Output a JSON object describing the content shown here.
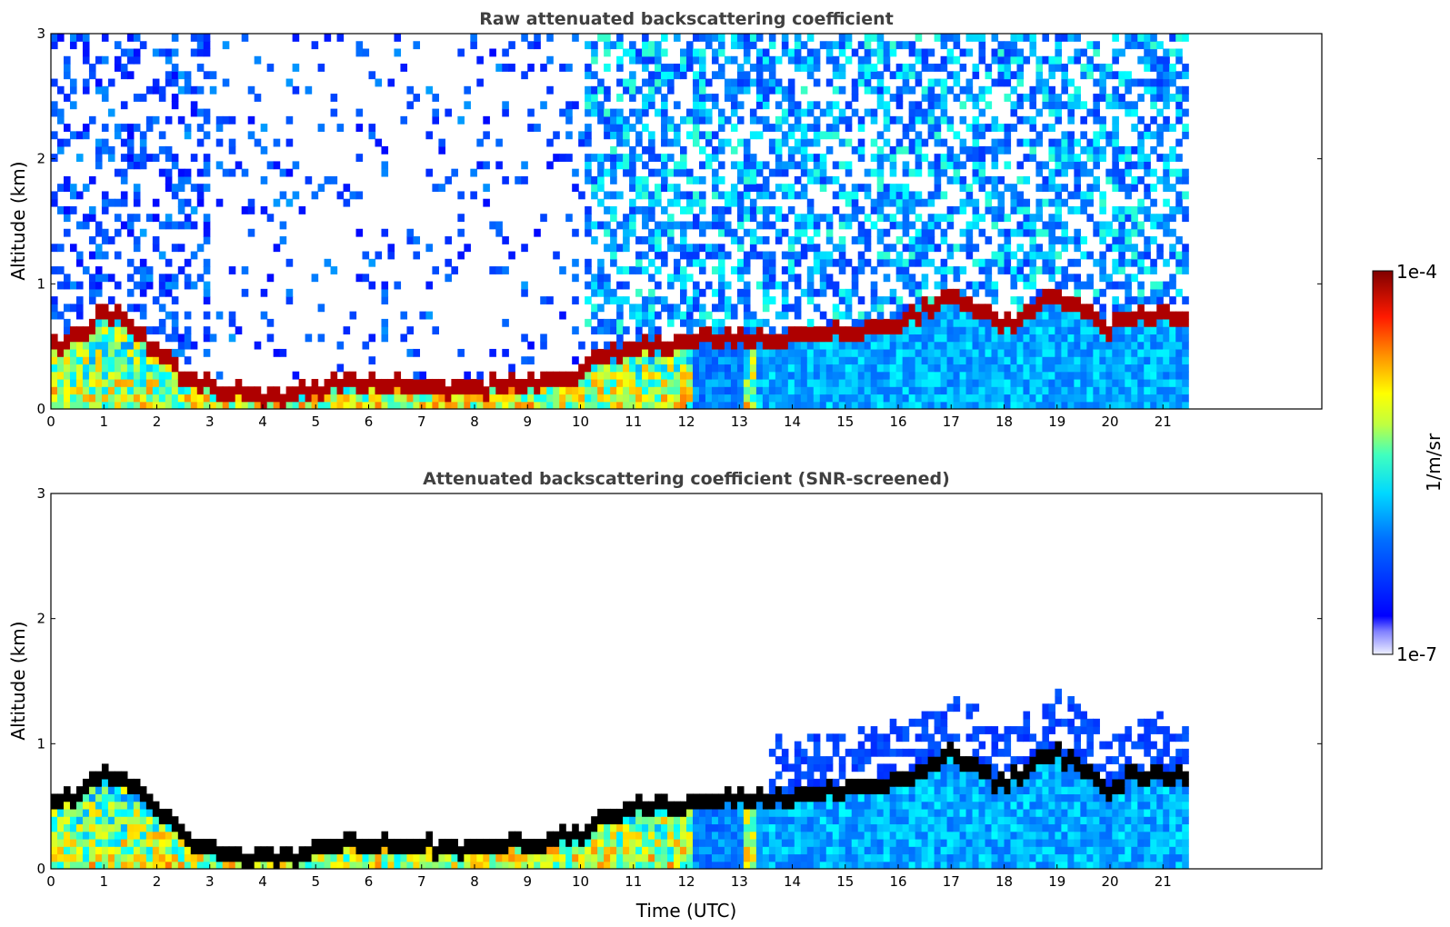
{
  "chart_data": [
    {
      "type": "heatmap",
      "title": "Raw attenuated backscattering coefficient",
      "xlabel": "",
      "ylabel": "Altitude (km)",
      "xlim": [
        0,
        24
      ],
      "ylim": [
        0,
        3
      ],
      "x_ticks": [
        "0",
        "1",
        "2",
        "3",
        "4",
        "5",
        "6",
        "7",
        "8",
        "9",
        "10",
        "11",
        "12",
        "13",
        "14",
        "15",
        "16",
        "17",
        "18",
        "19",
        "20",
        "21"
      ],
      "y_ticks": [
        "0",
        "1",
        "2",
        "3"
      ],
      "data_end_time": 21.45,
      "aerosol_layer_top_km": [
        [
          0.0,
          0.55
        ],
        [
          0.5,
          0.6
        ],
        [
          1.0,
          0.8
        ],
        [
          1.5,
          0.7
        ],
        [
          2.0,
          0.5
        ],
        [
          2.5,
          0.3
        ],
        [
          3.0,
          0.18
        ],
        [
          3.5,
          0.15
        ],
        [
          4.0,
          0.12
        ],
        [
          4.5,
          0.12
        ],
        [
          5.0,
          0.18
        ],
        [
          5.5,
          0.25
        ],
        [
          6.0,
          0.22
        ],
        [
          7.0,
          0.2
        ],
        [
          8.0,
          0.2
        ],
        [
          9.0,
          0.22
        ],
        [
          10.0,
          0.3
        ],
        [
          10.5,
          0.45
        ],
        [
          11.0,
          0.5
        ],
        [
          12.0,
          0.55
        ],
        [
          13.0,
          0.6
        ],
        [
          13.5,
          0.55
        ],
        [
          15.0,
          0.65
        ],
        [
          16.0,
          0.7
        ],
        [
          17.0,
          0.95
        ],
        [
          18.0,
          0.7
        ],
        [
          19.0,
          0.95
        ],
        [
          20.0,
          0.65
        ],
        [
          20.5,
          0.8
        ],
        [
          21.45,
          0.75
        ]
      ],
      "colorbar": {
        "min_label": "1e-7",
        "max_label": "1e-4",
        "label": "1/m/sr",
        "scale": "log"
      }
    },
    {
      "type": "heatmap",
      "title": "Attenuated backscattering coefficient (SNR-screened)",
      "xlabel": "Time (UTC)",
      "ylabel": "Altitude (km)",
      "xlim": [
        0,
        24
      ],
      "ylim": [
        0,
        3
      ],
      "x_ticks": [
        "0",
        "1",
        "2",
        "3",
        "4",
        "5",
        "6",
        "7",
        "8",
        "9",
        "10",
        "11",
        "12",
        "13",
        "14",
        "15",
        "16",
        "17",
        "18",
        "19",
        "20",
        "21"
      ],
      "y_ticks": [
        "0",
        "1",
        "2",
        "3"
      ],
      "data_end_time": 21.45
    }
  ],
  "colors": {
    "colormap": [
      "#00008f",
      "#0000ff",
      "#0080ff",
      "#00ffff",
      "#80ff80",
      "#ffff00",
      "#ff8000",
      "#ff0000",
      "#800000"
    ],
    "frame": "#000000",
    "title": "#404040"
  }
}
